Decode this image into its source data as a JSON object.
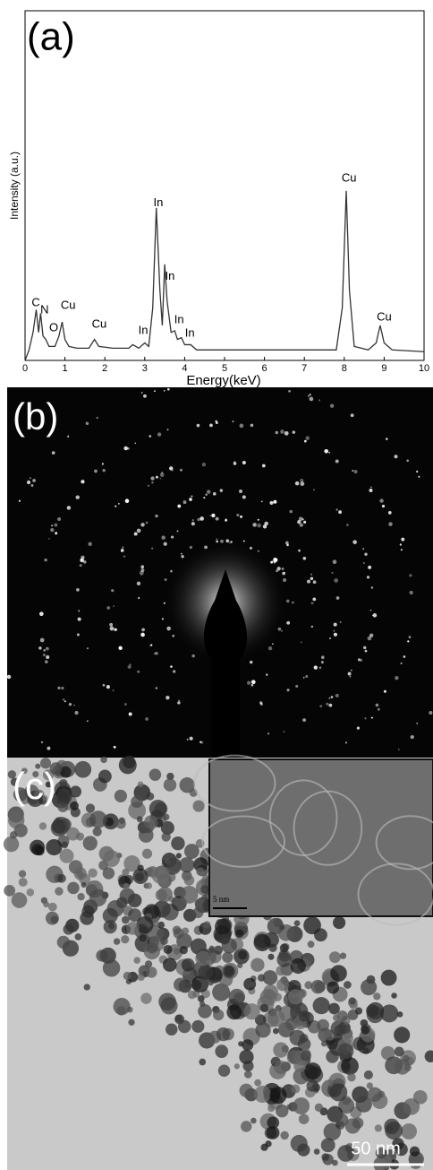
{
  "chart_data": {
    "type": "line",
    "panel_label": "(a)",
    "xlabel": "Energy(keV)",
    "ylabel": "Intensity (a.u.)",
    "x": [
      0,
      0.1,
      0.2,
      0.28,
      0.34,
      0.39,
      0.45,
      0.52,
      0.6,
      0.75,
      0.85,
      0.93,
      1.0,
      1.1,
      1.3,
      1.6,
      1.74,
      1.85,
      2.2,
      2.6,
      2.7,
      2.85,
      3.0,
      3.1,
      3.2,
      3.29,
      3.38,
      3.44,
      3.5,
      3.56,
      3.66,
      3.75,
      3.82,
      3.92,
      4.0,
      4.15,
      4.3,
      5,
      6,
      7,
      7.8,
      7.95,
      8.05,
      8.13,
      8.25,
      8.6,
      8.8,
      8.9,
      9.0,
      9.2,
      10
    ],
    "series": [
      {
        "color": "#333333",
        "values": [
          0,
          3,
          8,
          14.5,
          8,
          13.5,
          7,
          6,
          4,
          4,
          7,
          11,
          6,
          4,
          3.5,
          3.5,
          6,
          4,
          3.5,
          3.5,
          4.5,
          3.5,
          5,
          4,
          15,
          43.6,
          20,
          10,
          27.5,
          17,
          8,
          8.5,
          6,
          6.5,
          4.5,
          4.5,
          3,
          3,
          3,
          3,
          3,
          15,
          48.5,
          20,
          4,
          3,
          5,
          10,
          5,
          3,
          2.5
        ]
      }
    ],
    "xlim": [
      0,
      10
    ],
    "xticks": [
      0,
      1,
      2,
      3,
      4,
      5,
      6,
      7,
      8,
      9,
      10
    ],
    "ylim": [
      0,
      100
    ],
    "annotations": [
      {
        "text": "C",
        "x": 0.27,
        "y": 16.4
      },
      {
        "text": "N",
        "x": 0.49,
        "y": 14.4
      },
      {
        "text": "O",
        "x": 0.72,
        "y": 9.2
      },
      {
        "text": "Cu",
        "x": 1.08,
        "y": 15.6
      },
      {
        "text": "Cu",
        "x": 1.86,
        "y": 10.3
      },
      {
        "text": "In",
        "x": 2.96,
        "y": 8.5
      },
      {
        "text": "In",
        "x": 3.34,
        "y": 45
      },
      {
        "text": "In",
        "x": 3.63,
        "y": 24
      },
      {
        "text": "In",
        "x": 3.86,
        "y": 11.5
      },
      {
        "text": "In",
        "x": 4.13,
        "y": 7.7
      },
      {
        "text": "Cu",
        "x": 8.12,
        "y": 52
      },
      {
        "text": "Cu",
        "x": 9.0,
        "y": 12.3
      }
    ]
  },
  "panels": {
    "b": {
      "label": "(b)"
    },
    "c": {
      "label": "(c)",
      "inset_scale": "5 nm",
      "scale": "50 nm"
    }
  }
}
